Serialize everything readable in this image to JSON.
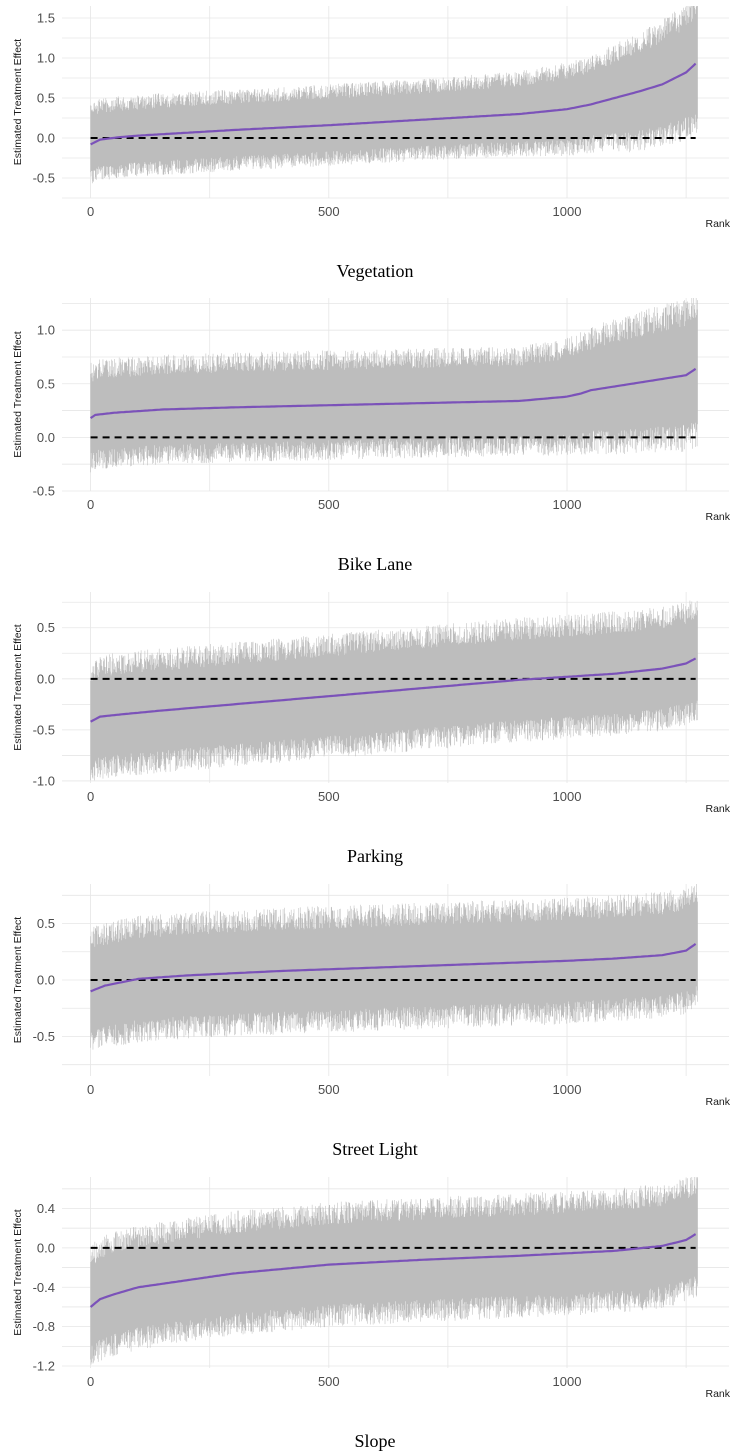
{
  "colors": {
    "grid": "#e6e6e6",
    "interval": "#bdbdbd",
    "estimate": "#7b52b9",
    "zero_line": "#000000",
    "background": "#ffffff"
  },
  "chart_data": [
    {
      "type": "line",
      "caption": "Vegetation",
      "xlabel": "Rank",
      "ylabel": "Estimated Treatment Effect",
      "xlim": [
        -60,
        1340
      ],
      "ylim": [
        -0.75,
        1.65
      ],
      "xticks": [
        0,
        500,
        1000
      ],
      "xtick_labels": [
        "0",
        "500",
        "1000"
      ],
      "yticks": [
        -0.5,
        0.0,
        0.5,
        1.0,
        1.5
      ],
      "ytick_labels": [
        "-0.5",
        "0.0",
        "0.5",
        "1.0",
        "1.5"
      ],
      "n_units": 1275,
      "reference_line": 0,
      "series": [
        {
          "values_x": [
            0,
            20,
            60,
            100,
            300,
            500,
            700,
            900,
            1000,
            1050,
            1100,
            1150,
            1200,
            1250,
            1270
          ],
          "values_y": [
            -0.08,
            -0.02,
            0.01,
            0.03,
            0.1,
            0.16,
            0.23,
            0.3,
            0.36,
            0.42,
            0.5,
            0.58,
            0.67,
            0.82,
            0.93
          ]
        }
      ],
      "interval_half_width": [
        {
          "x": [
            0,
            700,
            900,
            1050,
            1150,
            1270
          ],
          "y": [
            0.42,
            0.42,
            0.44,
            0.5,
            0.62,
            0.72
          ]
        }
      ],
      "grid": true
    },
    {
      "type": "line",
      "caption": "Bike Lane",
      "xlabel": "Rank",
      "ylabel": "Estimated Treatment Effect",
      "xlim": [
        -60,
        1340
      ],
      "ylim": [
        -0.5,
        1.3
      ],
      "xticks": [
        0,
        500,
        1000
      ],
      "xtick_labels": [
        "0",
        "500",
        "1000"
      ],
      "yticks": [
        -0.5,
        0.0,
        0.5,
        1.0
      ],
      "ytick_labels": [
        "-0.5",
        "0.0",
        "0.5",
        "1.0"
      ],
      "n_units": 1275,
      "reference_line": 0,
      "series": [
        {
          "values_x": [
            0,
            10,
            50,
            150,
            300,
            500,
            700,
            900,
            1000,
            1030,
            1050,
            1150,
            1250,
            1270
          ],
          "values_y": [
            0.18,
            0.21,
            0.23,
            0.26,
            0.28,
            0.3,
            0.32,
            0.34,
            0.38,
            0.41,
            0.44,
            0.51,
            0.58,
            0.64
          ]
        }
      ],
      "interval_half_width": [
        {
          "x": [
            0,
            900,
            1000,
            1100,
            1270
          ],
          "y": [
            0.42,
            0.42,
            0.45,
            0.52,
            0.6
          ]
        }
      ],
      "grid": true
    },
    {
      "type": "line",
      "caption": "Parking",
      "xlabel": "Rank",
      "ylabel": "Estimated Treatment Effect",
      "xlim": [
        -60,
        1340
      ],
      "ylim": [
        -1.02,
        0.85
      ],
      "xticks": [
        0,
        500,
        1000
      ],
      "xtick_labels": [
        "0",
        "500",
        "1000"
      ],
      "yticks": [
        -1.0,
        -0.5,
        0.0,
        0.5
      ],
      "ytick_labels": [
        "-1.0",
        "-0.5",
        "0.0",
        "0.5"
      ],
      "n_units": 1275,
      "reference_line": 0,
      "series": [
        {
          "values_x": [
            0,
            20,
            60,
            150,
            300,
            500,
            700,
            900,
            1000,
            1100,
            1200,
            1250,
            1270
          ],
          "values_y": [
            -0.42,
            -0.37,
            -0.35,
            -0.31,
            -0.25,
            -0.17,
            -0.09,
            -0.01,
            0.02,
            0.05,
            0.1,
            0.15,
            0.2
          ]
        }
      ],
      "interval_half_width": [
        {
          "x": [
            0,
            1270
          ],
          "y": [
            0.5,
            0.5
          ]
        }
      ],
      "grid": true
    },
    {
      "type": "line",
      "caption": "Street Light",
      "xlabel": "Rank",
      "ylabel": "Estimated Treatment Effect",
      "xlim": [
        -60,
        1340
      ],
      "ylim": [
        -0.85,
        0.85
      ],
      "xticks": [
        0,
        500,
        1000
      ],
      "xtick_labels": [
        "0",
        "500",
        "1000"
      ],
      "yticks": [
        -0.5,
        0.0,
        0.5
      ],
      "ytick_labels": [
        "-0.5",
        "0.0",
        "0.5"
      ],
      "n_units": 1275,
      "reference_line": 0,
      "series": [
        {
          "values_x": [
            0,
            30,
            100,
            200,
            400,
            600,
            800,
            1000,
            1100,
            1200,
            1250,
            1270
          ],
          "values_y": [
            -0.1,
            -0.05,
            0.01,
            0.04,
            0.08,
            0.11,
            0.14,
            0.17,
            0.19,
            0.22,
            0.26,
            0.32
          ]
        }
      ],
      "interval_half_width": [
        {
          "x": [
            0,
            1270
          ],
          "y": [
            0.46,
            0.46
          ]
        }
      ],
      "grid": true
    },
    {
      "type": "line",
      "caption": "Slope",
      "xlabel": "Rank",
      "ylabel": "Estimated Treatment Effect",
      "xlim": [
        -60,
        1340
      ],
      "ylim": [
        -1.22,
        0.72
      ],
      "xticks": [
        0,
        500,
        1000
      ],
      "xtick_labels": [
        "0",
        "500",
        "1000"
      ],
      "yticks": [
        -1.2,
        -0.8,
        -0.4,
        0.0,
        0.4
      ],
      "ytick_labels": [
        "-1.2",
        "-0.8",
        "-0.4",
        "0.0",
        "0.4"
      ],
      "n_units": 1275,
      "reference_line": 0,
      "series": [
        {
          "values_x": [
            0,
            20,
            50,
            100,
            200,
            300,
            500,
            700,
            900,
            1100,
            1200,
            1250,
            1270
          ],
          "values_y": [
            -0.6,
            -0.52,
            -0.47,
            -0.4,
            -0.33,
            -0.26,
            -0.17,
            -0.12,
            -0.08,
            -0.03,
            0.02,
            0.08,
            0.14
          ]
        }
      ],
      "interval_half_width": [
        {
          "x": [
            0,
            1270
          ],
          "y": [
            0.52,
            0.52
          ]
        }
      ],
      "grid": true
    }
  ]
}
